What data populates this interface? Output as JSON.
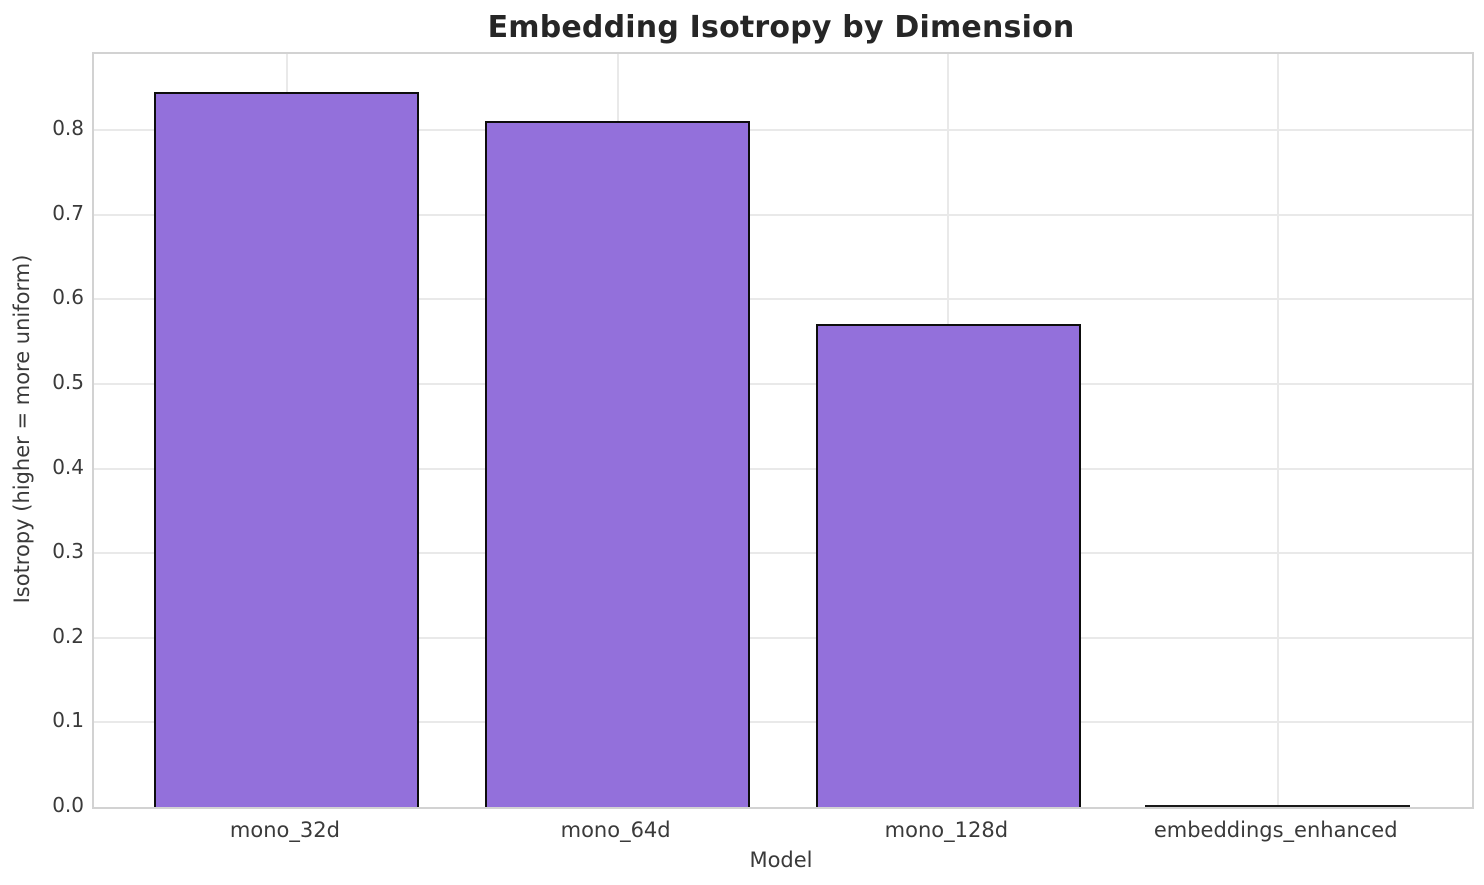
{
  "title": "Embedding Isotropy by Dimension",
  "axes": {
    "xlabel": "Model",
    "ylabel": "Isotropy (higher = more uniform)"
  },
  "colors": {
    "bar_fill": "#9370db",
    "bar_edge": "#0d0d0d",
    "grid": "#e9e9e9",
    "spine": "#d2d2d2",
    "title_text": "#262626",
    "tick_text": "#3a3a3a",
    "background": "#ffffff"
  },
  "chart_data": {
    "type": "bar",
    "title": "Embedding Isotropy by Dimension",
    "xlabel": "Model",
    "ylabel": "Isotropy (higher = more uniform)",
    "categories": [
      "mono_32d",
      "mono_64d",
      "mono_128d",
      "embeddings_enhanced"
    ],
    "values": [
      0.845,
      0.811,
      0.571,
      0.0
    ],
    "yticks": [
      0.0,
      0.1,
      0.2,
      0.3,
      0.4,
      0.5,
      0.6,
      0.7,
      0.8
    ],
    "ylim": [
      0,
      0.89
    ],
    "grid": true,
    "legend": false,
    "bar_color": "#9370db",
    "bar_edge_color": "black"
  }
}
